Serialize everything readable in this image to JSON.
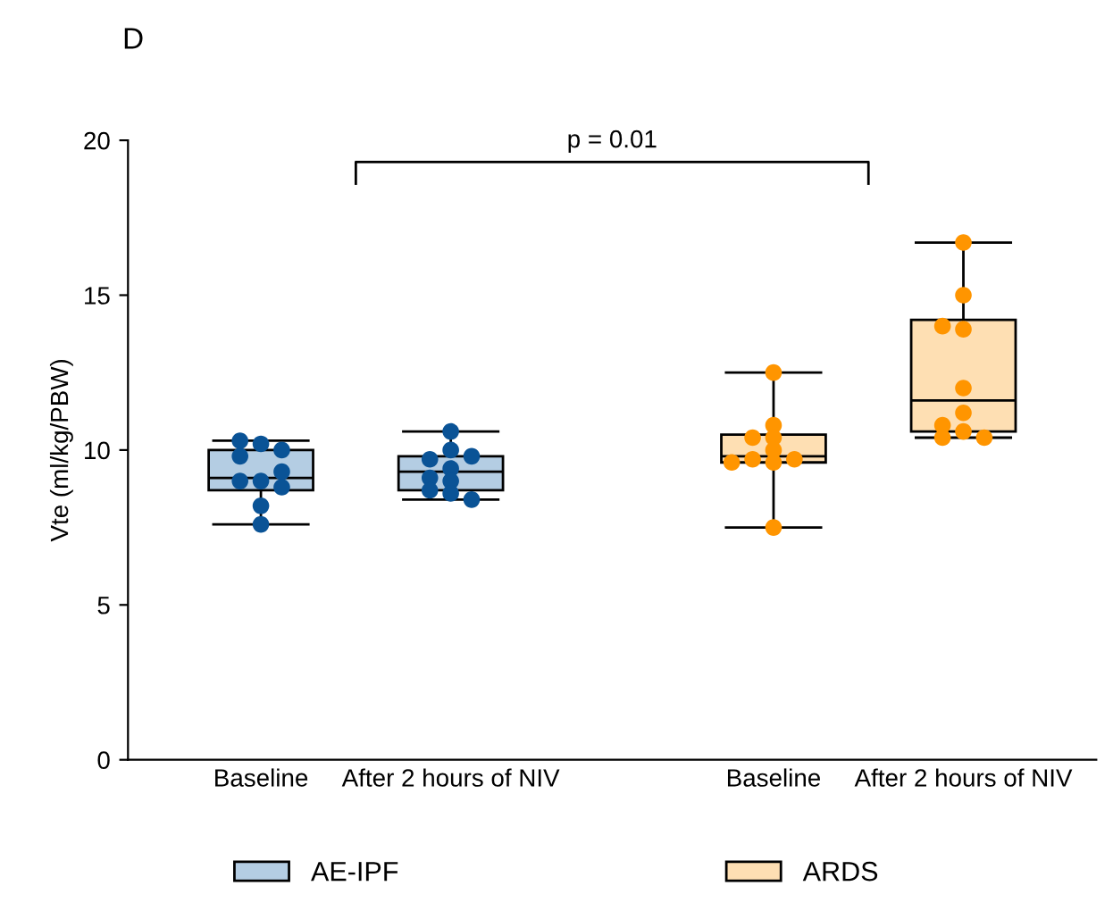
{
  "chart_data": {
    "type": "box",
    "title": "D",
    "ylabel": "Vte (ml/kg/PBW)",
    "categories": [
      "Baseline",
      "After 2 hours of NIV",
      "Baseline",
      "After 2 hours of NIV"
    ],
    "ylim": [
      0,
      20
    ],
    "yticks": [
      0,
      5,
      10,
      15,
      20
    ],
    "grid": false,
    "legend": "bottom",
    "marker": "circle",
    "annotations": [
      "p = 0.01"
    ],
    "series": [
      {
        "name": "AE-IPF",
        "color": "#b4cde3",
        "boxes": [
          {
            "low": 7.6,
            "q1": 8.7,
            "median": 9.1,
            "q3": 10.0,
            "high": 10.3
          },
          {
            "low": 8.4,
            "q1": 8.7,
            "median": 9.3,
            "q3": 9.8,
            "high": 10.6
          },
          null,
          null
        ]
      },
      {
        "name": "ARDS",
        "color": "#fedfb3",
        "boxes": [
          null,
          null,
          {
            "low": 7.5,
            "q1": 9.6,
            "median": 9.8,
            "q3": 10.5,
            "high": 12.5
          },
          {
            "low": 10.4,
            "q1": 10.6,
            "median": 11.6,
            "q3": 14.2,
            "high": 16.7
          }
        ]
      },
      {
        "type": "scatter",
        "colors": [
          "#0a5396",
          "#0a5396",
          "#ff9500",
          "#ff9500"
        ],
        "values": [
          10.2,
          10.6,
          12.5,
          16.7
        ]
      },
      {
        "type": "scatter",
        "colors": [
          "#0a5396",
          "#0a5396",
          "#ff9500",
          "#ff9500"
        ],
        "values": [
          9.8,
          10.0,
          10.8,
          15.0
        ]
      },
      {
        "type": "scatter",
        "colors": [
          "#0a5396",
          "#0a5396",
          "#ff9500",
          "#ff9500"
        ],
        "values": [
          10.0,
          9.7,
          10.4,
          13.9
        ]
      },
      {
        "type": "scatter",
        "colors": [
          "#0a5396",
          "#0a5396",
          "#ff9500",
          "#ff9500"
        ],
        "values": [
          10.3,
          9.8,
          10.4,
          14.0
        ]
      },
      {
        "type": "scatter",
        "colors": [
          "#0a5396",
          "#0a5396",
          "#ff9500",
          "#ff9500"
        ],
        "values": [
          9.0,
          9.4,
          10.0,
          12.0
        ]
      },
      {
        "type": "scatter",
        "colors": [
          "#0a5396",
          "#0a5396",
          "#ff9500",
          "#ff9500"
        ],
        "values": [
          9.0,
          9.1,
          9.7,
          11.2
        ]
      },
      {
        "type": "scatter",
        "colors": [
          "#0a5396",
          "#0a5396",
          "#ff9500",
          "#ff9500"
        ],
        "values": [
          9.3,
          9.0,
          9.7,
          10.8
        ]
      },
      {
        "type": "scatter",
        "colors": [
          "#0a5396",
          "#0a5396",
          "#ff9500",
          "#ff9500"
        ],
        "values": [
          8.8,
          8.7,
          9.6,
          10.6
        ]
      },
      {
        "type": "scatter",
        "colors": [
          "#0a5396",
          "#0a5396",
          "#ff9500",
          "#ff9500"
        ],
        "values": [
          8.2,
          8.6,
          9.6,
          10.4
        ]
      },
      {
        "type": "scatter",
        "colors": [
          "#0a5396",
          "#0a5396",
          "#ff9500",
          "#ff9500"
        ],
        "values": [
          7.6,
          8.4,
          7.5,
          10.4
        ]
      }
    ]
  }
}
